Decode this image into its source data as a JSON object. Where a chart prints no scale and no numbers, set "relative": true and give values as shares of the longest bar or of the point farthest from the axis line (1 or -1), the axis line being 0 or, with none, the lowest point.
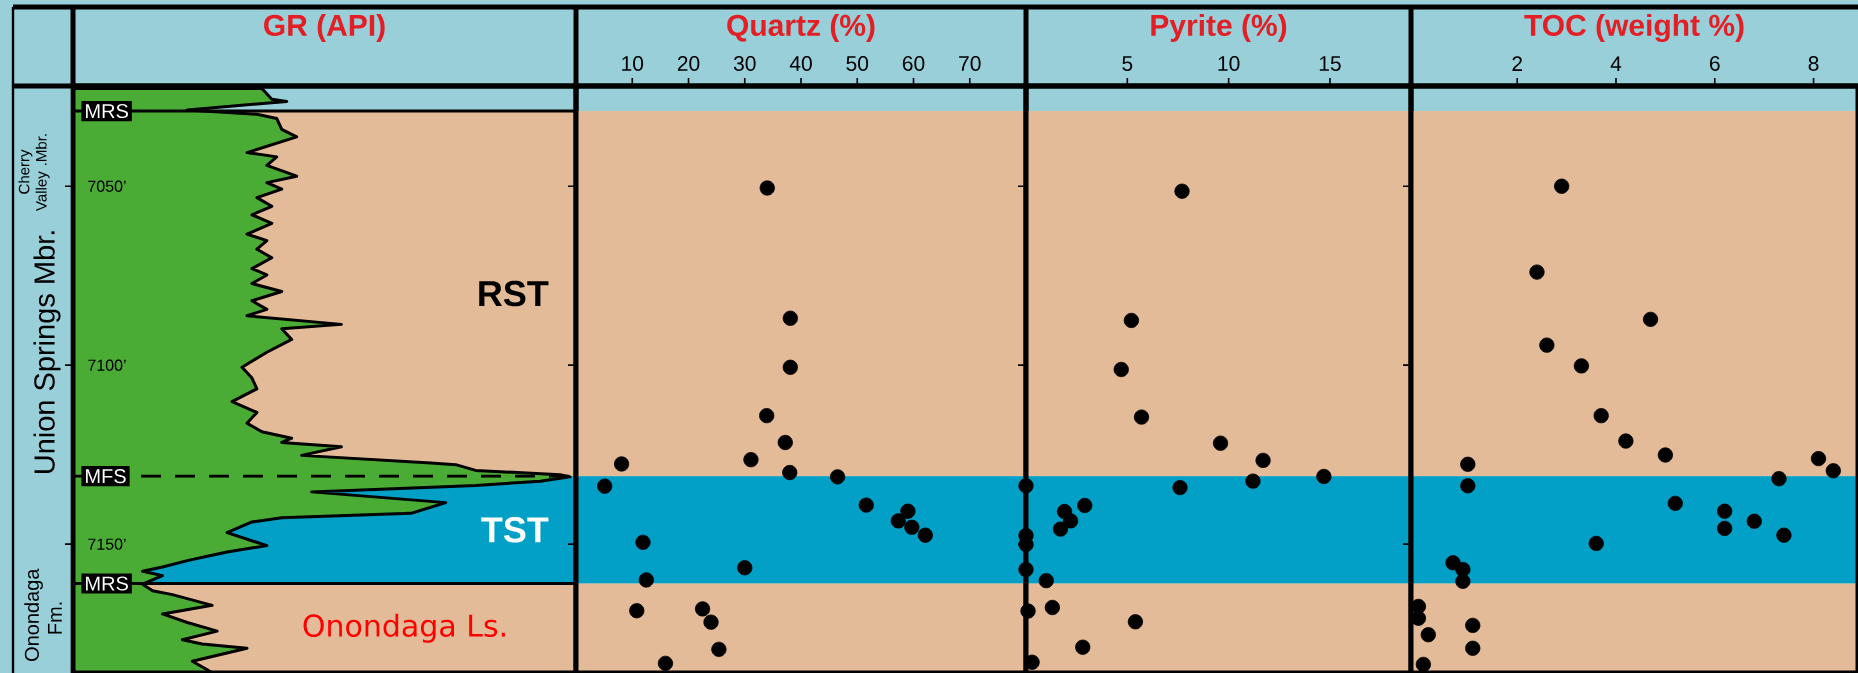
{
  "chart_data": [
    {
      "type": "area",
      "title": "GR (API)",
      "orientation": "horizontal",
      "relative": true,
      "color": "#4bac35",
      "x": [
        7022.7,
        7025.7,
        7026.3,
        7028.7,
        7029.9,
        7031.1,
        7034.1,
        7036.2,
        7040.6,
        7041.8,
        7044.2,
        7047.2,
        7049.0,
        7050.8,
        7053.2,
        7055.6,
        7058.0,
        7060.4,
        7063.4,
        7065.2,
        7067.6,
        7070.0,
        7073.0,
        7074.8,
        7077.2,
        7079.4,
        7082.0,
        7084.4,
        7086.2,
        7088.6,
        7089.8,
        7092.8,
        7096.4,
        7100.6,
        7103.6,
        7106.6,
        7110.2,
        7113.2,
        7116.2,
        7118.6,
        7120.4,
        7121.6,
        7122.8,
        7125.2,
        7127.3,
        7127.8,
        7129.4,
        7130.6,
        7131.2,
        7132.4,
        7133.6,
        7135.4,
        7138.4,
        7141.4,
        7142.6,
        7143.8,
        7146.8,
        7150.4,
        7152.2,
        7153.4,
        7154.6,
        7156.4,
        7157.6,
        7158.8,
        7161.2,
        7163.0,
        7164.1,
        7167.1,
        7169.5,
        7171.9,
        7174.3,
        7176.7,
        7177.9,
        7179.1,
        7182.7,
        7185.1,
        7186
      ],
      "values": [
        0.38,
        0.4,
        0.43,
        0.23,
        0.37,
        0.41,
        0.42,
        0.45,
        0.35,
        0.41,
        0.39,
        0.45,
        0.39,
        0.42,
        0.37,
        0.4,
        0.36,
        0.4,
        0.35,
        0.39,
        0.37,
        0.4,
        0.36,
        0.39,
        0.36,
        0.42,
        0.36,
        0.39,
        0.35,
        0.54,
        0.42,
        0.44,
        0.39,
        0.34,
        0.36,
        0.37,
        0.32,
        0.37,
        0.35,
        0.38,
        0.44,
        0.42,
        0.54,
        0.46,
        0.72,
        0.77,
        0.81,
        0.98,
        1,
        0.94,
        0.81,
        0.48,
        0.75,
        0.68,
        0.42,
        0.36,
        0.31,
        0.39,
        0.31,
        0.27,
        0.23,
        0.18,
        0.14,
        0.18,
        0.14,
        0.16,
        0.2,
        0.28,
        0.18,
        0.23,
        0.29,
        0.22,
        0.26,
        0.35,
        0.24,
        0.27,
        0.28
      ],
      "ylim": [
        7186,
        7022
      ],
      "yticks": [
        {
          "value": 7050,
          "label": "7050’"
        },
        {
          "value": 7100,
          "label": "7100’"
        },
        {
          "value": 7150,
          "label": "7150’"
        }
      ],
      "tick_labels": "y",
      "bands": [
        {
          "axis": "y",
          "from": 7029,
          "to": 7131,
          "label": "RST",
          "color": "#e3bb98"
        },
        {
          "axis": "y",
          "from": 7131,
          "to": 7161,
          "label": "TST",
          "color": "#02a0c6"
        },
        {
          "axis": "y",
          "from": 7161,
          "to": 7186,
          "label": "Onondaga Ls.",
          "color": "#e3bb98"
        }
      ],
      "ref_lines": [
        {
          "axis": "y",
          "value": 7029,
          "label": "MRS",
          "line_style": "solid"
        },
        {
          "axis": "y",
          "value": 7131,
          "label": "MFS",
          "line_style": "dashed"
        },
        {
          "axis": "y",
          "value": 7161,
          "label": "MRS",
          "line_style": "solid"
        }
      ],
      "annotations": [
        "Cherry Valley .Mbr.",
        "Union Springs Mbr.",
        "Onondaga Fm."
      ]
    },
    {
      "type": "scatter",
      "title": "Quartz (%)",
      "color": "#000000",
      "marker": "circle",
      "x": [
        34,
        38.1,
        38.1,
        33.9,
        37.2,
        8.1,
        31.1,
        38.0,
        46.5,
        5.1,
        51.6,
        59.0,
        57.3,
        59.7,
        62.1,
        11.9,
        30.0,
        12.5,
        10.8,
        22.5,
        24.0,
        25.4,
        15.9
      ],
      "values": [
        7050.5,
        7086.9,
        7100.6,
        7114.1,
        7121.6,
        7127.6,
        7126.4,
        7130.0,
        7131.2,
        7133.8,
        7139.1,
        7140.8,
        7143.5,
        7145.3,
        7147.5,
        7149.5,
        7156.6,
        7160.0,
        7168.6,
        7168.1,
        7171.8,
        7179.4,
        7183.3
      ],
      "xlim": [
        0,
        80
      ],
      "xticks": [
        10,
        20,
        30,
        40,
        50,
        60,
        70
      ],
      "ylim": [
        7186,
        7022
      ],
      "tick_labels": "x",
      "yticks": [
        7050,
        7100,
        7150
      ],
      "bands": [
        {
          "axis": "y",
          "from": 7029,
          "to": 7131,
          "color": "#e3bb98"
        },
        {
          "axis": "y",
          "from": 7131,
          "to": 7161,
          "color": "#02a0c6"
        },
        {
          "axis": "y",
          "from": 7161,
          "to": 7186,
          "color": "#e3bb98"
        }
      ]
    },
    {
      "type": "scatter",
      "title": "Pyrite (%)",
      "color": "#000000",
      "marker": "circle",
      "x": [
        7.7,
        5.2,
        4.7,
        5.7,
        9.6,
        11.7,
        11.2,
        14.7,
        7.6,
        0.0,
        2.9,
        1.9,
        2.2,
        1.7,
        0.0,
        0.0,
        0.0,
        1.0,
        0.1,
        1.3,
        5.4,
        2.8,
        0.3
      ],
      "values": [
        7051.4,
        7087.5,
        7101.2,
        7114.5,
        7121.8,
        7126.6,
        7132.4,
        7131.1,
        7134.2,
        7133.7,
        7139.2,
        7140.9,
        7143.5,
        7145.8,
        7147.6,
        7150.1,
        7157.1,
        7160.2,
        7168.7,
        7167.7,
        7171.7,
        7178.8,
        7183.0
      ],
      "xlim": [
        0,
        19
      ],
      "xticks": [
        5,
        10,
        15
      ],
      "ylim": [
        7186,
        7022
      ],
      "tick_labels": "x",
      "yticks": [
        7050,
        7100,
        7150
      ],
      "bands": [
        {
          "axis": "y",
          "from": 7029,
          "to": 7131,
          "color": "#e3bb98"
        },
        {
          "axis": "y",
          "from": 7131,
          "to": 7161,
          "color": "#02a0c6"
        },
        {
          "axis": "y",
          "from": 7161,
          "to": 7186,
          "color": "#e3bb98"
        }
      ]
    },
    {
      "type": "scatter",
      "title": "TOC (weight %)",
      "color": "#000000",
      "marker": "circle",
      "x": [
        2.9,
        2.4,
        4.7,
        2.6,
        3.3,
        3.7,
        4.2,
        5.0,
        1.0,
        1.0,
        8.1,
        8.4,
        7.3,
        5.2,
        6.2,
        6.2,
        6.8,
        7.4,
        3.6,
        0.7,
        0.9,
        0.9,
        0.0,
        0.0,
        0.2,
        1.1,
        0.1,
        1.1
      ],
      "values": [
        7050.0,
        7074.0,
        7087.2,
        7094.4,
        7100.2,
        7114.1,
        7121.2,
        7125.1,
        7127.7,
        7133.7,
        7126.1,
        7129.5,
        7131.7,
        7138.6,
        7140.8,
        7145.6,
        7143.6,
        7147.5,
        7149.8,
        7155.2,
        7157.1,
        7160.4,
        7167.4,
        7170.7,
        7175.3,
        7172.7,
        7183.6,
        7179.1
      ],
      "xlim": [
        -0.15,
        8.9
      ],
      "xticks": [
        2,
        4,
        6,
        8
      ],
      "ylim": [
        7186,
        7022
      ],
      "tick_labels": "x",
      "yticks": [
        7050,
        7100,
        7150
      ],
      "bands": [
        {
          "axis": "y",
          "from": 7029,
          "to": 7131,
          "color": "#e3bb98"
        },
        {
          "axis": "y",
          "from": 7131,
          "to": 7161,
          "color": "#02a0c6"
        },
        {
          "axis": "y",
          "from": 7161,
          "to": 7186,
          "color": "#e3bb98"
        }
      ]
    }
  ]
}
